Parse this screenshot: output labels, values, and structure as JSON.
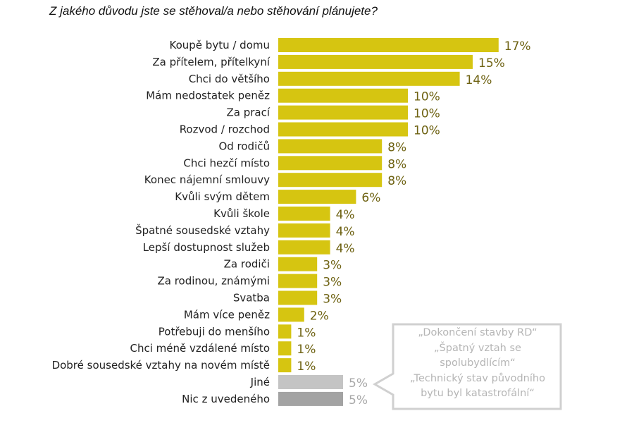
{
  "chart_data": {
    "type": "bar",
    "orientation": "horizontal",
    "title": "Z jakého důvodu jste se stěhoval/a nebo stěhování plánujete?",
    "categories": [
      "Koupě bytu / domu",
      "Za přítelem, přítelkyní",
      "Chci do většího",
      "Mám nedostatek peněz",
      "Za prací",
      "Rozvod / rozchod",
      "Od rodičů",
      "Chci hezčí místo",
      "Konec nájemní smlouvy",
      "Kvůli svým dětem",
      "Kvůli škole",
      "Špatné sousedské vztahy",
      "Lepší dostupnost služeb",
      "Za rodiči",
      "Za rodinou, známými",
      "Svatba",
      "Mám více peněz",
      "Potřebuji do menšího",
      "Chci méně vzdálené místo",
      "Dobré sousedské vztahy na novém místě",
      "Jiné",
      "Nic z uvedeného"
    ],
    "values": [
      17,
      15,
      14,
      10,
      10,
      10,
      8,
      8,
      8,
      6,
      4,
      4,
      4,
      3,
      3,
      3,
      2,
      1,
      1,
      1,
      5,
      5
    ],
    "value_labels": [
      "17%",
      "15%",
      "14%",
      "10%",
      "10%",
      "10%",
      "8%",
      "8%",
      "8%",
      "6%",
      "4%",
      "4%",
      "4%",
      "3%",
      "3%",
      "3%",
      "2%",
      "1%",
      "1%",
      "1%",
      "5%",
      "5%"
    ],
    "unit": "%",
    "xlim": [
      0,
      18
    ],
    "grid": false,
    "colors": {
      "main": "#d6c511",
      "main_label": "#6e6212",
      "other": "#c4c4c4",
      "none": "#a3a3a3",
      "gray_label": "#a8a8a8"
    },
    "bar_colors": [
      "main",
      "main",
      "main",
      "main",
      "main",
      "main",
      "main",
      "main",
      "main",
      "main",
      "main",
      "main",
      "main",
      "main",
      "main",
      "main",
      "main",
      "main",
      "main",
      "main",
      "other",
      "none"
    ],
    "annotation": {
      "lines": [
        "„Dokončení stavby RD“",
        "„Špatný vztah se",
        "spolubydlícím“",
        "„Technický stav původního",
        "bytu byl katastrofální“"
      ]
    }
  }
}
